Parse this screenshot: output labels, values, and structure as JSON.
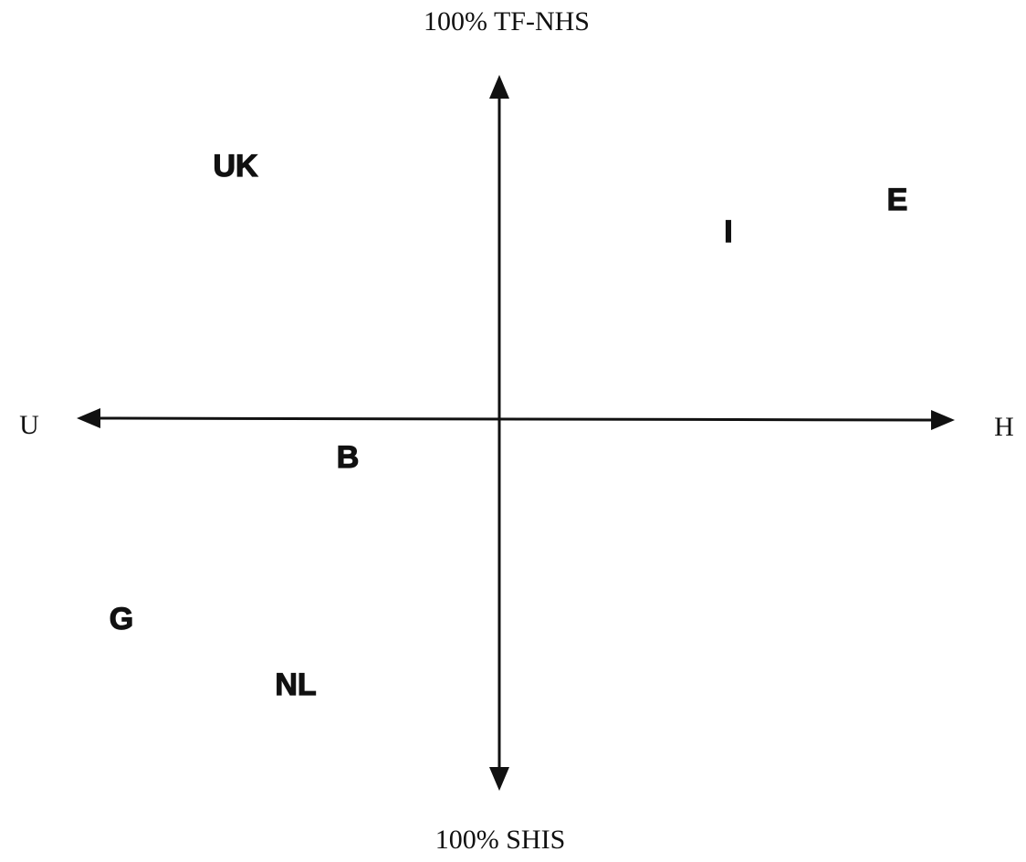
{
  "axes": {
    "top": "100% TF-NHS",
    "bottom": "100% SHIS",
    "left": "U",
    "right": "H"
  },
  "countries": [
    "UK",
    "E",
    "I",
    "B",
    "G",
    "NL"
  ]
}
